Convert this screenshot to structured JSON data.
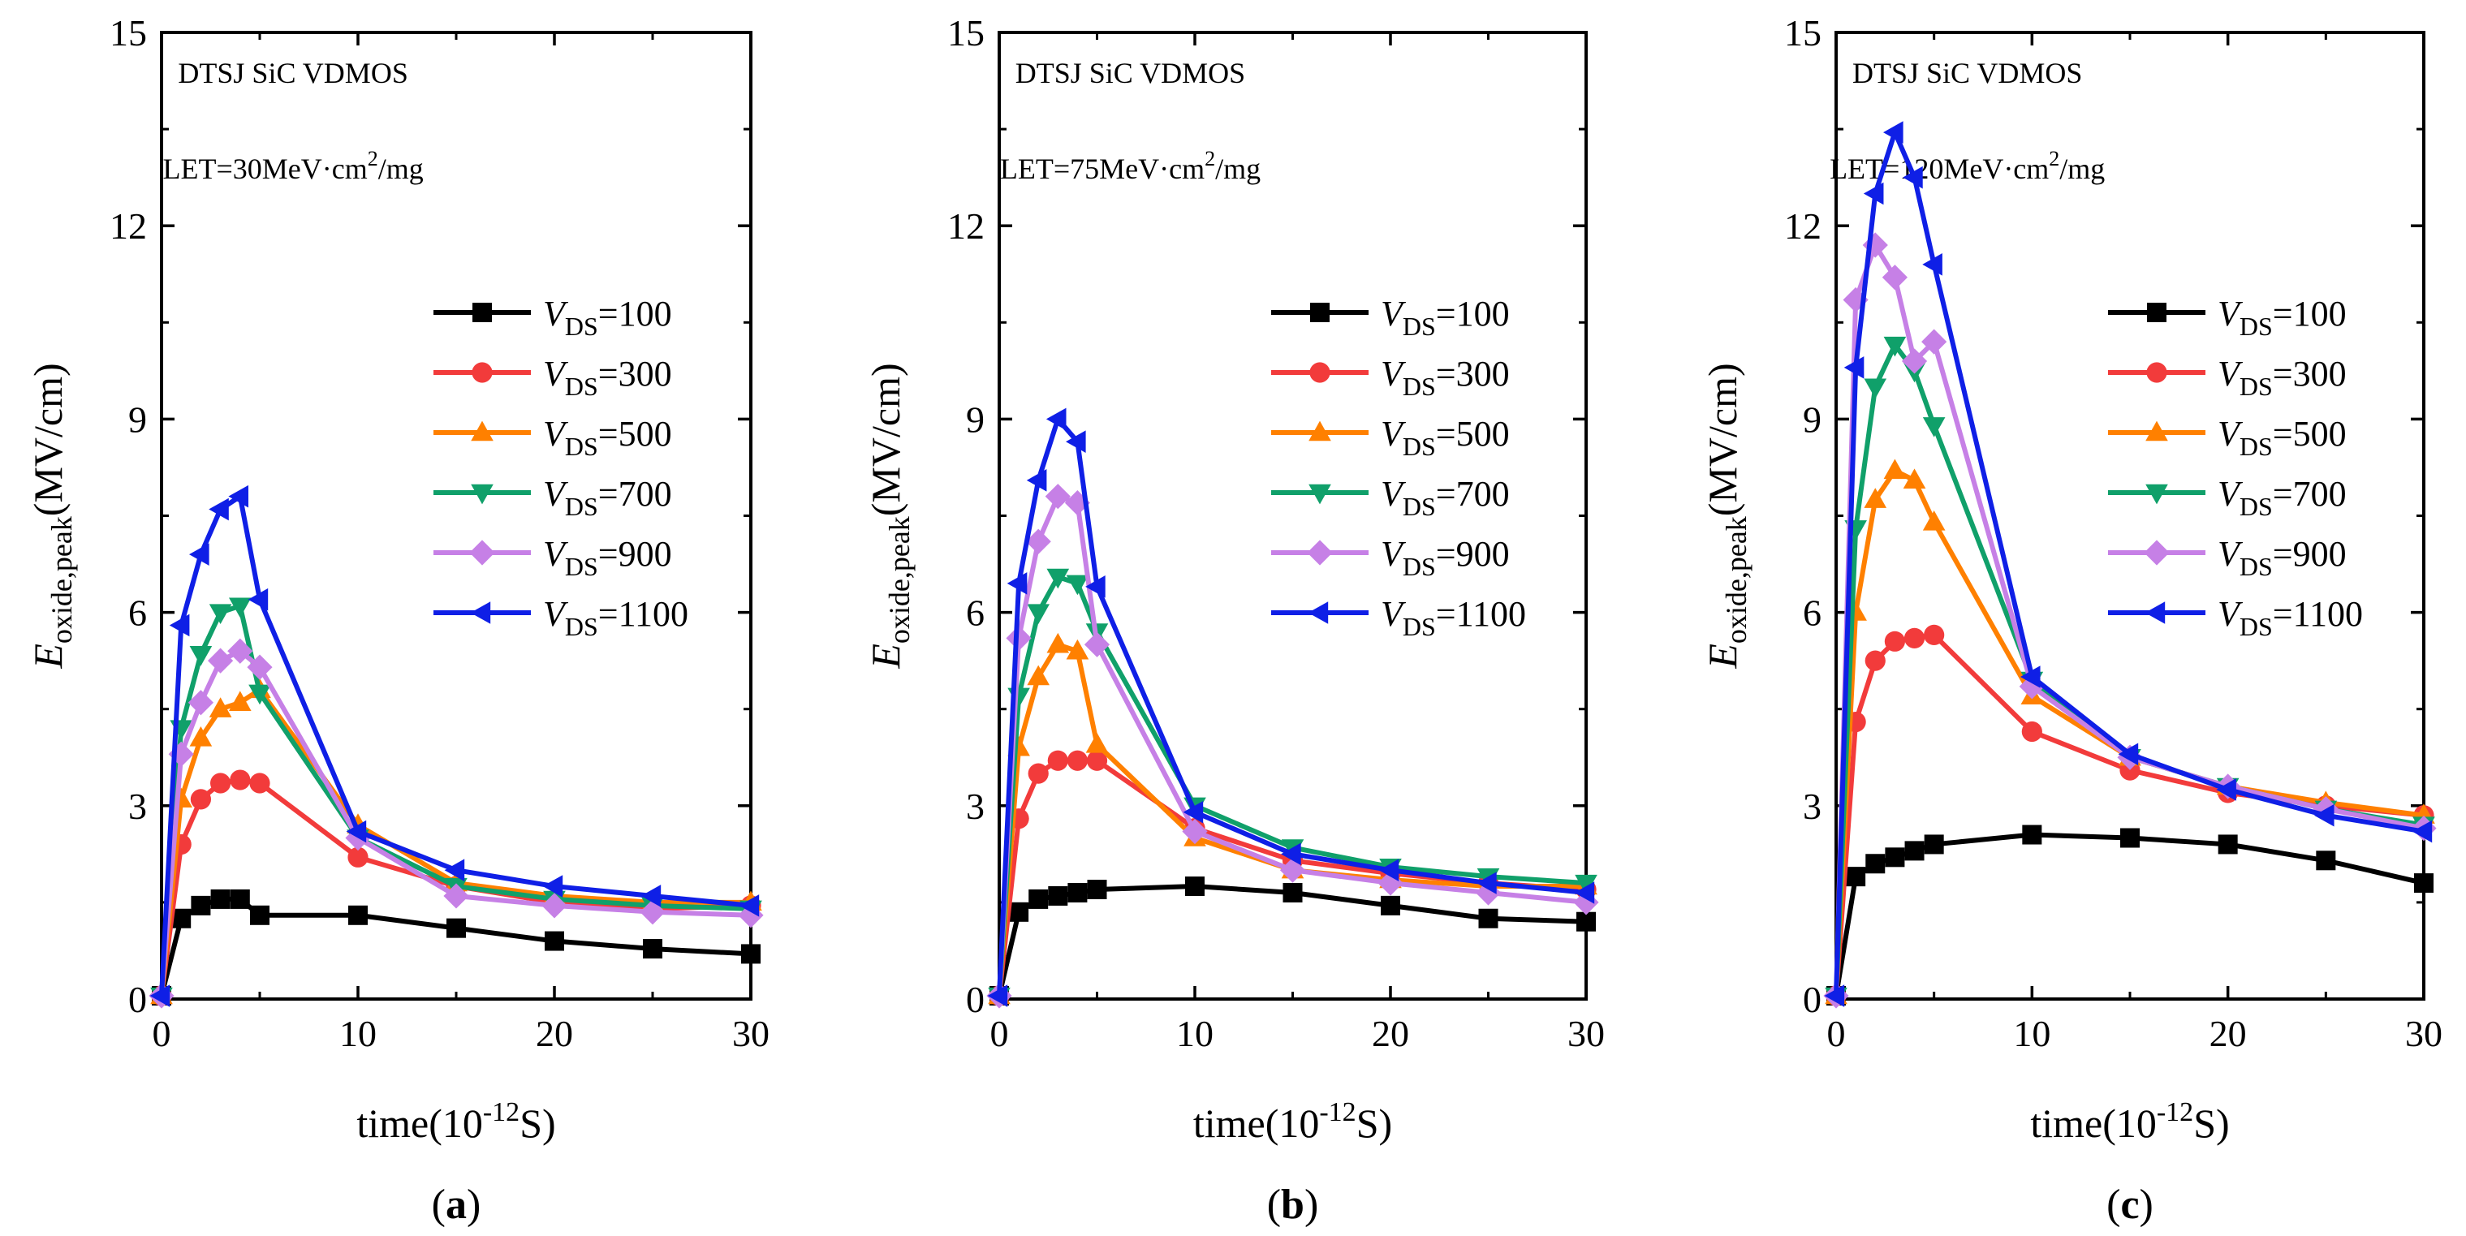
{
  "chart_data": [
    {
      "type": "line",
      "panel_label": "a",
      "title": "DTSJ SiC VDMOS",
      "let": {
        "prefix": "LET=30MeV·cm",
        "sup": "2",
        "suffix": "/mg"
      },
      "xlabel": {
        "prefix": "time(10",
        "sup": "-12",
        "suffix": "S)"
      },
      "ylabel": {
        "main": "E",
        "sub": "oxide,peak",
        "unit": "(MV/cm)"
      },
      "xlim": [
        0,
        30
      ],
      "ylim": [
        0,
        15
      ],
      "xticks": [
        "0",
        "10",
        "20",
        "30"
      ],
      "yticks": [
        "0",
        "3",
        "6",
        "9",
        "12",
        "15"
      ],
      "legend_position": "right",
      "series": [
        {
          "name": "100",
          "legend_prefix": "V",
          "legend_sub": "DS",
          "legend_text": "=100",
          "x": [
            0,
            1,
            2,
            3,
            4,
            5,
            10,
            15,
            20,
            25,
            30
          ],
          "values": [
            0.05,
            1.25,
            1.45,
            1.55,
            1.55,
            1.3,
            1.3,
            1.1,
            0.9,
            0.78,
            0.7
          ]
        },
        {
          "name": "300",
          "legend_prefix": "V",
          "legend_sub": "DS",
          "legend_text": "=300",
          "x": [
            0,
            1,
            2,
            3,
            4,
            5,
            10,
            15,
            20,
            25,
            30
          ],
          "values": [
            0.05,
            2.4,
            3.1,
            3.35,
            3.4,
            3.35,
            2.2,
            1.75,
            1.5,
            1.4,
            1.45
          ]
        },
        {
          "name": "500",
          "legend_prefix": "V",
          "legend_sub": "DS",
          "legend_text": "=500",
          "x": [
            0,
            1,
            2,
            3,
            4,
            5,
            10,
            15,
            20,
            25,
            30
          ],
          "values": [
            0.05,
            3.1,
            4.05,
            4.5,
            4.6,
            4.8,
            2.7,
            1.8,
            1.6,
            1.5,
            1.5
          ]
        },
        {
          "name": "700",
          "legend_prefix": "V",
          "legend_sub": "DS",
          "legend_text": "=700",
          "x": [
            0,
            1,
            2,
            3,
            4,
            5,
            10,
            15,
            20,
            25,
            30
          ],
          "values": [
            0.05,
            4.2,
            5.35,
            6.0,
            6.1,
            4.75,
            2.5,
            1.75,
            1.55,
            1.45,
            1.4
          ]
        },
        {
          "name": "900",
          "legend_prefix": "V",
          "legend_sub": "DS",
          "legend_text": "=900",
          "x": [
            0,
            1,
            2,
            3,
            4,
            5,
            10,
            15,
            20,
            25,
            30
          ],
          "values": [
            0.05,
            3.8,
            4.6,
            5.25,
            5.4,
            5.15,
            2.5,
            1.6,
            1.45,
            1.35,
            1.3
          ]
        },
        {
          "name": "1100",
          "legend_prefix": "V",
          "legend_sub": "DS",
          "legend_text": "=1100",
          "x": [
            0,
            1,
            2,
            3,
            4,
            5,
            10,
            15,
            20,
            25,
            30
          ],
          "values": [
            0.05,
            5.8,
            6.9,
            7.6,
            7.8,
            6.2,
            2.6,
            2.0,
            1.75,
            1.6,
            1.45
          ]
        }
      ]
    },
    {
      "type": "line",
      "panel_label": "b",
      "title": "DTSJ SiC VDMOS",
      "let": {
        "prefix": "LET=75MeV·cm",
        "sup": "2",
        "suffix": "/mg"
      },
      "xlabel": {
        "prefix": "time(10",
        "sup": "-12",
        "suffix": "S)"
      },
      "ylabel": {
        "main": "E",
        "sub": "oxide,peak",
        "unit": "(MV/cm)"
      },
      "xlim": [
        0,
        30
      ],
      "ylim": [
        0,
        15
      ],
      "xticks": [
        "0",
        "10",
        "20",
        "30"
      ],
      "yticks": [
        "0",
        "3",
        "6",
        "9",
        "12",
        "15"
      ],
      "legend_position": "right",
      "series": [
        {
          "name": "100",
          "legend_prefix": "V",
          "legend_sub": "DS",
          "legend_text": "=100",
          "x": [
            0,
            1,
            2,
            3,
            4,
            5,
            10,
            15,
            20,
            25,
            30
          ],
          "values": [
            0.05,
            1.35,
            1.55,
            1.6,
            1.65,
            1.7,
            1.75,
            1.65,
            1.45,
            1.25,
            1.2
          ]
        },
        {
          "name": "300",
          "legend_prefix": "V",
          "legend_sub": "DS",
          "legend_text": "=300",
          "x": [
            0,
            1,
            2,
            3,
            4,
            5,
            10,
            15,
            20,
            25,
            30
          ],
          "values": [
            0.05,
            2.8,
            3.5,
            3.7,
            3.7,
            3.7,
            2.65,
            2.15,
            1.95,
            1.8,
            1.7
          ]
        },
        {
          "name": "500",
          "legend_prefix": "V",
          "legend_sub": "DS",
          "legend_text": "=500",
          "x": [
            0,
            1,
            2,
            3,
            4,
            5,
            10,
            15,
            20,
            25,
            30
          ],
          "values": [
            0.05,
            3.9,
            5.0,
            5.5,
            5.4,
            3.95,
            2.5,
            2.0,
            1.85,
            1.75,
            1.75
          ]
        },
        {
          "name": "700",
          "legend_prefix": "V",
          "legend_sub": "DS",
          "legend_text": "=700",
          "x": [
            0,
            1,
            2,
            3,
            4,
            5,
            10,
            15,
            20,
            25,
            30
          ],
          "values": [
            0.05,
            4.7,
            6.0,
            6.55,
            6.45,
            5.7,
            3.0,
            2.35,
            2.05,
            1.9,
            1.8
          ]
        },
        {
          "name": "900",
          "legend_prefix": "V",
          "legend_sub": "DS",
          "legend_text": "=900",
          "x": [
            0,
            1,
            2,
            3,
            4,
            5,
            10,
            15,
            20,
            25,
            30
          ],
          "values": [
            0.05,
            5.6,
            7.1,
            7.8,
            7.7,
            5.5,
            2.6,
            2.0,
            1.8,
            1.65,
            1.5
          ]
        },
        {
          "name": "1100",
          "legend_prefix": "V",
          "legend_sub": "DS",
          "legend_text": "=1100",
          "x": [
            0,
            1,
            2,
            3,
            4,
            5,
            10,
            15,
            20,
            25,
            30
          ],
          "values": [
            0.05,
            6.45,
            8.05,
            9.0,
            8.65,
            6.4,
            2.9,
            2.25,
            2.0,
            1.8,
            1.65
          ]
        }
      ]
    },
    {
      "type": "line",
      "panel_label": "c",
      "title": "DTSJ SiC VDMOS",
      "let": {
        "prefix": "LET=120MeV·cm",
        "sup": "2",
        "suffix": "/mg"
      },
      "xlabel": {
        "prefix": "time(10",
        "sup": "-12",
        "suffix": "S)"
      },
      "ylabel": {
        "main": "E",
        "sub": "oxide,peak",
        "unit": "(MV/cm)"
      },
      "xlim": [
        0,
        30
      ],
      "ylim": [
        0,
        15
      ],
      "xticks": [
        "0",
        "10",
        "20",
        "30"
      ],
      "yticks": [
        "0",
        "3",
        "6",
        "9",
        "12",
        "15"
      ],
      "legend_position": "right",
      "series": [
        {
          "name": "100",
          "legend_prefix": "V",
          "legend_sub": "DS",
          "legend_text": "=100",
          "x": [
            0,
            1,
            2,
            3,
            4,
            5,
            10,
            15,
            20,
            25,
            30
          ],
          "values": [
            0.05,
            1.9,
            2.1,
            2.2,
            2.3,
            2.4,
            2.55,
            2.5,
            2.4,
            2.15,
            1.8
          ]
        },
        {
          "name": "300",
          "legend_prefix": "V",
          "legend_sub": "DS",
          "legend_text": "=300",
          "x": [
            0,
            1,
            2,
            3,
            4,
            5,
            10,
            15,
            20,
            25,
            30
          ],
          "values": [
            0.05,
            4.3,
            5.25,
            5.55,
            5.6,
            5.65,
            4.15,
            3.55,
            3.2,
            3.0,
            2.85
          ]
        },
        {
          "name": "500",
          "legend_prefix": "V",
          "legend_sub": "DS",
          "legend_text": "=500",
          "x": [
            0,
            1,
            2,
            3,
            4,
            5,
            10,
            15,
            20,
            25,
            30
          ],
          "values": [
            0.05,
            6.0,
            7.75,
            8.2,
            8.05,
            7.4,
            4.7,
            3.75,
            3.3,
            3.05,
            2.85
          ]
        },
        {
          "name": "700",
          "legend_prefix": "V",
          "legend_sub": "DS",
          "legend_text": "=700",
          "x": [
            0,
            1,
            2,
            3,
            4,
            5,
            10,
            15,
            20,
            25,
            30
          ],
          "values": [
            0.05,
            7.3,
            9.5,
            10.15,
            9.75,
            8.9,
            4.95,
            3.75,
            3.3,
            2.95,
            2.7
          ]
        },
        {
          "name": "900",
          "legend_prefix": "V",
          "legend_sub": "DS",
          "legend_text": "=900",
          "x": [
            0,
            1,
            2,
            3,
            4,
            5,
            10,
            15,
            20,
            25,
            30
          ],
          "values": [
            0.05,
            10.85,
            11.7,
            11.2,
            9.9,
            10.2,
            4.85,
            3.75,
            3.3,
            2.95,
            2.65
          ]
        },
        {
          "name": "1100",
          "legend_prefix": "V",
          "legend_sub": "DS",
          "legend_text": "=1100",
          "x": [
            0,
            1,
            2,
            3,
            4,
            5,
            10,
            15,
            20,
            25,
            30
          ],
          "values": [
            0.05,
            9.8,
            12.5,
            13.45,
            12.75,
            11.4,
            5.0,
            3.8,
            3.25,
            2.85,
            2.6
          ]
        }
      ]
    }
  ],
  "styles": [
    {
      "color": "#000000",
      "marker": "square"
    },
    {
      "color": "#f23b3b",
      "marker": "circle"
    },
    {
      "color": "#ff8000",
      "marker": "triangle-up"
    },
    {
      "color": "#10a06a",
      "marker": "triangle-down"
    },
    {
      "color": "#c680e6",
      "marker": "diamond"
    },
    {
      "color": "#0f1fe6",
      "marker": "triangle-left"
    }
  ]
}
